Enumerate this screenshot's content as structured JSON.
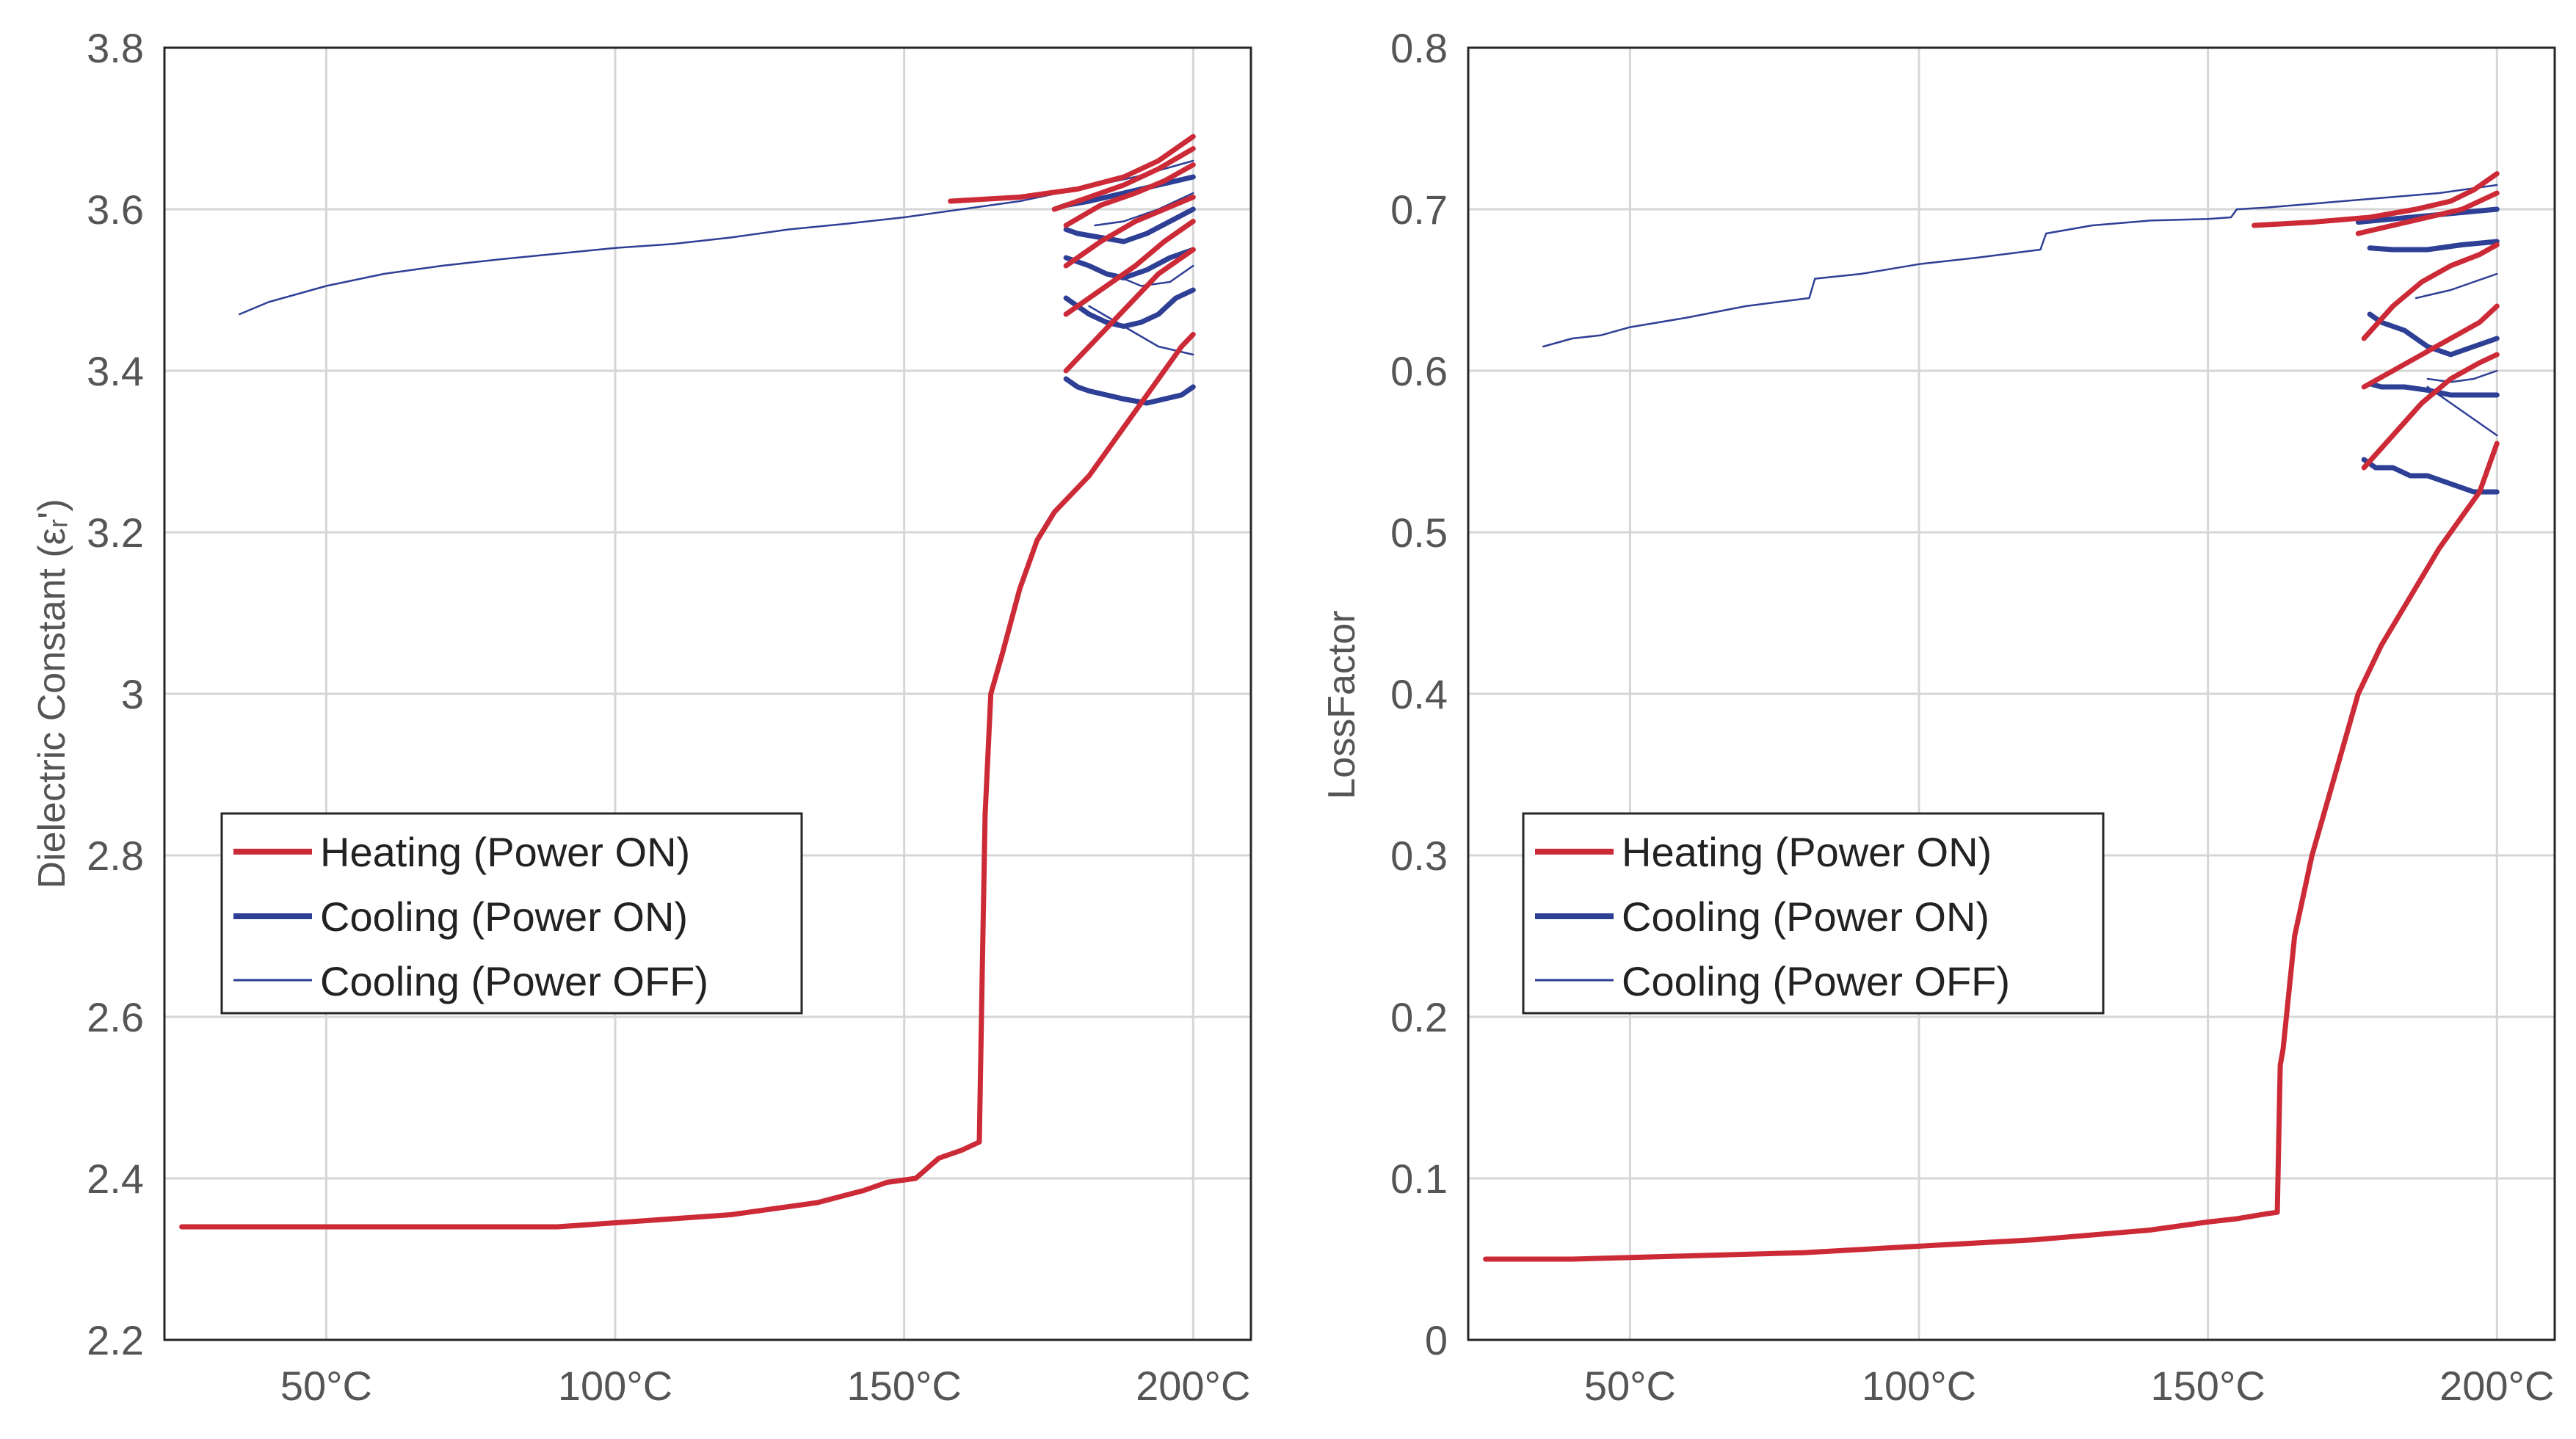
{
  "chart_data": [
    {
      "type": "line",
      "title": "",
      "xlabel": "",
      "ylabel": "Dielectric Constant (εᵣ')",
      "xlim": [
        22,
        210
      ],
      "ylim": [
        2.2,
        3.8
      ],
      "xticks": [
        50,
        100,
        150,
        200
      ],
      "xticklabels": [
        "50°C",
        "100°C",
        "150°C",
        "200°C"
      ],
      "yticks": [
        2.2,
        2.4,
        2.6,
        2.8,
        3.0,
        3.2,
        3.4,
        3.6,
        3.8
      ],
      "yticklabels": [
        "2.2",
        "2.4",
        "2.6",
        "2.8",
        "3",
        "3.2",
        "3.4",
        "3.6",
        "3.8"
      ],
      "grid": true,
      "legend_position": "middle-left",
      "series": [
        {
          "name": "Heating (Power ON)",
          "color": "#cc2a36",
          "weight": "thick",
          "segments": [
            {
              "x": [
                25,
                50,
                90,
                100,
                120,
                135,
                143,
                147,
                152,
                156,
                160,
                163,
                163.5,
                164,
                165,
                167,
                170,
                173,
                176,
                178,
                182,
                186,
                190,
                193,
                196,
                198,
                200
              ],
              "y": [
                2.34,
                2.34,
                2.34,
                2.345,
                2.355,
                2.37,
                2.385,
                2.395,
                2.4,
                2.425,
                2.435,
                2.445,
                2.65,
                2.85,
                3.0,
                3.05,
                3.13,
                3.19,
                3.225,
                3.24,
                3.27,
                3.31,
                3.35,
                3.38,
                3.41,
                3.43,
                3.445
              ]
            },
            {
              "x": [
                178,
                182,
                186,
                190,
                194,
                198,
                200
              ],
              "y": [
                3.4,
                3.43,
                3.46,
                3.49,
                3.52,
                3.54,
                3.55
              ]
            },
            {
              "x": [
                178,
                184,
                190,
                195,
                198,
                200
              ],
              "y": [
                3.47,
                3.5,
                3.53,
                3.56,
                3.575,
                3.585
              ]
            },
            {
              "x": [
                178,
                184,
                190,
                195,
                200
              ],
              "y": [
                3.53,
                3.56,
                3.585,
                3.6,
                3.615
              ]
            },
            {
              "x": [
                178,
                184,
                190,
                195,
                200
              ],
              "y": [
                3.58,
                3.605,
                3.62,
                3.635,
                3.655
              ]
            },
            {
              "x": [
                176,
                182,
                188,
                194,
                200
              ],
              "y": [
                3.6,
                3.615,
                3.63,
                3.65,
                3.675
              ]
            },
            {
              "x": [
                158,
                170,
                180,
                188,
                194,
                200
              ],
              "y": [
                3.61,
                3.615,
                3.625,
                3.64,
                3.66,
                3.69
              ]
            }
          ]
        },
        {
          "name": "Cooling (Power ON)",
          "color": "#2e3f96",
          "weight": "thick",
          "segments": [
            {
              "x": [
                200,
                198,
                195,
                192,
                188,
                185,
                182,
                180,
                178
              ],
              "y": [
                3.38,
                3.37,
                3.365,
                3.36,
                3.365,
                3.37,
                3.375,
                3.38,
                3.39
              ]
            },
            {
              "x": [
                200,
                197,
                194,
                191,
                188,
                185,
                182,
                180,
                178
              ],
              "y": [
                3.5,
                3.49,
                3.47,
                3.46,
                3.455,
                3.46,
                3.47,
                3.48,
                3.49
              ]
            },
            {
              "x": [
                200,
                196,
                192,
                188,
                185,
                182,
                180,
                178
              ],
              "y": [
                3.55,
                3.54,
                3.525,
                3.515,
                3.52,
                3.53,
                3.535,
                3.54
              ]
            },
            {
              "x": [
                200,
                196,
                192,
                188,
                184,
                180,
                178
              ],
              "y": [
                3.6,
                3.585,
                3.57,
                3.56,
                3.565,
                3.57,
                3.575
              ]
            },
            {
              "x": [
                200,
                194,
                188,
                182,
                178,
                176
              ],
              "y": [
                3.64,
                3.63,
                3.62,
                3.61,
                3.605,
                3.6
              ]
            }
          ]
        },
        {
          "name": "Cooling (Power OFF)",
          "color": "#2e3f96",
          "weight": "thin",
          "segments": [
            {
              "x": [
                200,
                190,
                180,
                170,
                165,
                160,
                150,
                140,
                130,
                120,
                110,
                100,
                90,
                80,
                70,
                60,
                50,
                45,
                40,
                35
              ],
              "y": [
                3.66,
                3.64,
                3.625,
                3.61,
                3.605,
                3.6,
                3.59,
                3.582,
                3.575,
                3.565,
                3.557,
                3.552,
                3.545,
                3.538,
                3.53,
                3.52,
                3.505,
                3.495,
                3.485,
                3.47
              ]
            },
            {
              "x": [
                200,
                194,
                188,
                182
              ],
              "y": [
                3.42,
                3.43,
                3.455,
                3.48
              ]
            },
            {
              "x": [
                200,
                196,
                191,
                186
              ],
              "y": [
                3.53,
                3.51,
                3.505,
                3.52
              ]
            },
            {
              "x": [
                200,
                194,
                188,
                183
              ],
              "y": [
                3.62,
                3.6,
                3.585,
                3.58
              ]
            }
          ]
        }
      ]
    },
    {
      "type": "line",
      "title": "",
      "xlabel": "",
      "ylabel": "LossFactor",
      "xlim": [
        22,
        210
      ],
      "ylim": [
        0,
        0.8
      ],
      "xticks": [
        50,
        100,
        150,
        200
      ],
      "xticklabels": [
        "50°C",
        "100°C",
        "150°C",
        "200°C"
      ],
      "yticks": [
        0,
        0.1,
        0.2,
        0.3,
        0.4,
        0.5,
        0.6,
        0.7,
        0.8
      ],
      "yticklabels": [
        "0",
        "0.1",
        "0.2",
        "0.3",
        "0.4",
        "0.5",
        "0.6",
        "0.7",
        "0.8"
      ],
      "grid": true,
      "legend_position": "middle-left",
      "series": [
        {
          "name": "Heating (Power ON)",
          "color": "#cc2a36",
          "weight": "thick",
          "segments": [
            {
              "x": [
                25,
                40,
                60,
                80,
                100,
                120,
                140,
                150,
                155,
                160,
                162,
                162.5,
                163,
                165,
                168,
                172,
                176,
                180,
                185,
                190,
                194,
                197,
                199,
                200
              ],
              "y": [
                0.05,
                0.05,
                0.052,
                0.054,
                0.058,
                0.062,
                0.068,
                0.073,
                0.075,
                0.078,
                0.079,
                0.17,
                0.18,
                0.25,
                0.3,
                0.35,
                0.4,
                0.43,
                0.46,
                0.49,
                0.51,
                0.525,
                0.545,
                0.555
              ]
            },
            {
              "x": [
                177,
                182,
                187,
                192,
                197,
                200
              ],
              "y": [
                0.54,
                0.56,
                0.58,
                0.595,
                0.605,
                0.61
              ]
            },
            {
              "x": [
                177,
                182,
                187,
                192,
                197,
                200
              ],
              "y": [
                0.59,
                0.6,
                0.61,
                0.62,
                0.63,
                0.64
              ]
            },
            {
              "x": [
                177,
                182,
                187,
                192,
                197,
                200
              ],
              "y": [
                0.62,
                0.64,
                0.655,
                0.665,
                0.672,
                0.678
              ]
            },
            {
              "x": [
                176,
                182,
                188,
                194,
                200
              ],
              "y": [
                0.685,
                0.69,
                0.695,
                0.7,
                0.71
              ]
            },
            {
              "x": [
                158,
                168,
                178,
                186,
                192,
                196,
                200
              ],
              "y": [
                0.69,
                0.692,
                0.695,
                0.7,
                0.705,
                0.712,
                0.722
              ]
            }
          ]
        },
        {
          "name": "Cooling (Power ON)",
          "color": "#2e3f96",
          "weight": "thick",
          "segments": [
            {
              "x": [
                200,
                196,
                192,
                188,
                185,
                182,
                179,
                177
              ],
              "y": [
                0.525,
                0.525,
                0.53,
                0.535,
                0.535,
                0.54,
                0.54,
                0.545
              ]
            },
            {
              "x": [
                200,
                196,
                192,
                188,
                184,
                180,
                178
              ],
              "y": [
                0.585,
                0.585,
                0.585,
                0.588,
                0.59,
                0.59,
                0.592
              ]
            },
            {
              "x": [
                200,
                196,
                192,
                188,
                184,
                180,
                178
              ],
              "y": [
                0.62,
                0.615,
                0.61,
                0.615,
                0.625,
                0.63,
                0.635
              ]
            },
            {
              "x": [
                200,
                194,
                188,
                182,
                178
              ],
              "y": [
                0.68,
                0.678,
                0.675,
                0.675,
                0.676
              ]
            },
            {
              "x": [
                200,
                194,
                188,
                182,
                176
              ],
              "y": [
                0.7,
                0.698,
                0.696,
                0.694,
                0.692
              ]
            }
          ]
        },
        {
          "name": "Cooling (Power OFF)",
          "color": "#2e3f96",
          "weight": "thin",
          "segments": [
            {
              "x": [
                200,
                190,
                180,
                170,
                160,
                155,
                154,
                150,
                140,
                130,
                122,
                121,
                110,
                100,
                90,
                82,
                81,
                70,
                60,
                50,
                45,
                40,
                35
              ],
              "y": [
                0.715,
                0.71,
                0.707,
                0.704,
                0.701,
                0.7,
                0.695,
                0.694,
                0.693,
                0.69,
                0.685,
                0.675,
                0.67,
                0.666,
                0.66,
                0.657,
                0.645,
                0.64,
                0.633,
                0.627,
                0.622,
                0.62,
                0.615
              ]
            },
            {
              "x": [
                200,
                196,
                192,
                188
              ],
              "y": [
                0.56,
                0.57,
                0.58,
                0.59
              ]
            },
            {
              "x": [
                200,
                196,
                192,
                188
              ],
              "y": [
                0.6,
                0.595,
                0.593,
                0.595
              ]
            },
            {
              "x": [
                200,
                196,
                192,
                186
              ],
              "y": [
                0.66,
                0.655,
                0.65,
                0.645
              ]
            }
          ]
        }
      ]
    }
  ]
}
